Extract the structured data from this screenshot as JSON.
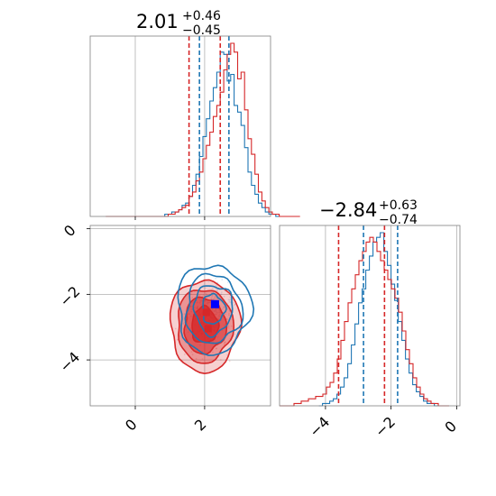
{
  "chart_data": {
    "type": "corner",
    "colors": {
      "blue": "#1f77b4",
      "red": "#d62728",
      "grid": "#b0b0b0",
      "frame": "#808080",
      "marker": "#0000ff"
    },
    "parameters": [
      {
        "title_value": "2.01",
        "title_upper": "+0.46",
        "title_lower": "−0.45",
        "range": [
          -1.3,
          3.9
        ]
      },
      {
        "title_value": "−2.84",
        "title_upper": "+0.63",
        "title_lower": "−0.74",
        "range": [
          -5.4,
          0.1
        ]
      }
    ],
    "panels": {
      "hist_x": {
        "xlim": [
          -1.3,
          3.9
        ],
        "quantiles_blue": [
          1.85,
          2.7
        ],
        "quantiles_red": [
          1.55,
          2.45
        ],
        "hist_blue": {
          "start": 0.65,
          "width": 0.1,
          "counts": [
            0,
            0,
            1,
            1,
            2,
            2,
            3,
            5,
            6,
            9,
            14,
            19,
            27,
            36,
            44,
            52,
            58,
            65,
            74,
            73,
            61,
            64,
            50,
            47,
            41,
            31,
            20,
            14,
            10,
            6,
            4,
            2,
            1,
            1,
            0,
            0
          ]
        },
        "hist_red": {
          "start": -0.85,
          "width": 0.1,
          "counts": [
            0,
            0,
            0,
            0,
            0,
            0,
            0,
            0,
            0,
            0,
            0,
            0,
            0,
            0,
            0,
            0,
            0,
            0,
            1,
            1,
            2,
            3,
            4,
            5,
            9,
            11,
            16,
            20,
            26,
            32,
            38,
            45,
            50,
            56,
            66,
            73,
            78,
            74,
            62,
            65,
            48,
            35,
            28,
            19,
            11,
            7,
            4,
            2,
            1,
            1,
            0,
            0,
            0,
            0,
            0,
            0
          ]
        }
      },
      "hist_y": {
        "xlim": [
          -5.4,
          0.1
        ],
        "quantiles_blue": [
          -2.84,
          -1.8
        ],
        "quantiles_red": [
          -3.6,
          -2.2
        ],
        "hist_blue": {
          "start": -4.2,
          "width": 0.11,
          "counts": [
            0,
            1,
            1,
            2,
            3,
            5,
            8,
            12,
            18,
            26,
            35,
            44,
            50,
            58,
            64,
            70,
            72,
            74,
            66,
            60,
            52,
            45,
            36,
            28,
            20,
            14,
            9,
            6,
            4,
            2,
            1,
            1,
            0,
            0
          ]
        },
        "hist_red": {
          "start": -5.4,
          "width": 0.11,
          "counts": [
            0,
            0,
            0,
            0,
            1,
            1,
            2,
            2,
            3,
            3,
            4,
            4,
            5,
            8,
            10,
            14,
            20,
            28,
            36,
            44,
            50,
            56,
            62,
            66,
            70,
            72,
            70,
            66,
            62,
            58,
            54,
            50,
            46,
            40,
            32,
            24,
            18,
            12,
            8,
            5,
            3,
            2,
            1,
            1,
            0,
            0,
            0
          ]
        }
      },
      "scatter": {
        "xlim": [
          -1.3,
          3.9
        ],
        "ylim": [
          -5.4,
          0.1
        ],
        "xticks": [
          0,
          2
        ],
        "yticks": [
          0,
          -2,
          -4
        ],
        "markers_red": [
          [
            2.05,
            -2.55
          ],
          [
            2.1,
            -3.05
          ]
        ],
        "marker_blue": [
          2.3,
          -2.3
        ]
      }
    },
    "tick_labels": {
      "scatter_x": [
        "0",
        "2"
      ],
      "scatter_y": [
        "0",
        "−2",
        "−4"
      ],
      "hist_y_x": [
        "−4",
        "−2",
        "0"
      ]
    },
    "grid": true
  }
}
